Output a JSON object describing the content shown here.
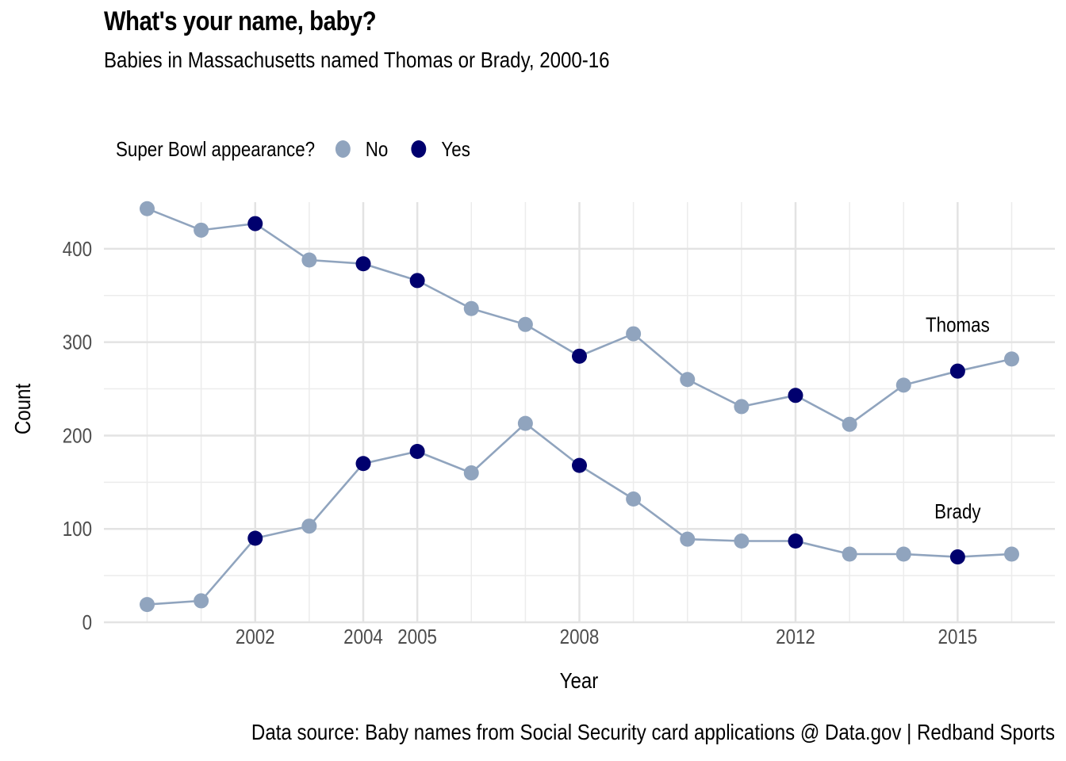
{
  "chart_data": {
    "type": "line",
    "title": "What's your name, baby?",
    "subtitle": "Babies in Massachusetts named Thomas or Brady, 2000-16",
    "xlabel": "Year",
    "ylabel": "Count",
    "caption": "Data source: Baby names from Social Security card applications @ Data.gov  |  Redband Sports",
    "legend": {
      "title": "Super Bowl appearance?",
      "placement": "top-left",
      "items": [
        {
          "label": "No",
          "color": "#90a4be"
        },
        {
          "label": "Yes",
          "color": "#00006e"
        }
      ]
    },
    "xlim": [
      1999.2,
      2016.8
    ],
    "ylim": [
      0,
      450
    ],
    "x_ticks": [
      2002,
      2004,
      2005,
      2008,
      2012,
      2015
    ],
    "y_ticks": [
      0,
      100,
      200,
      300,
      400
    ],
    "grid": true,
    "line_color": "#90a4be",
    "point_colors": {
      "No": "#90a4be",
      "Yes": "#00006e"
    },
    "x": [
      2000,
      2001,
      2002,
      2003,
      2004,
      2005,
      2006,
      2007,
      2008,
      2009,
      2010,
      2011,
      2012,
      2013,
      2014,
      2015,
      2016
    ],
    "super_bowl": [
      "No",
      "No",
      "Yes",
      "No",
      "Yes",
      "Yes",
      "No",
      "No",
      "Yes",
      "No",
      "No",
      "No",
      "Yes",
      "No",
      "No",
      "Yes",
      "No"
    ],
    "series": [
      {
        "name": "Thomas",
        "label_x": 2015,
        "label_y": 319,
        "values": [
          443,
          420,
          427,
          388,
          384,
          366,
          336,
          319,
          285,
          309,
          260,
          231,
          243,
          212,
          254,
          269,
          282
        ]
      },
      {
        "name": "Brady",
        "label_x": 2015,
        "label_y": 119,
        "values": [
          19,
          23,
          90,
          103,
          170,
          183,
          160,
          213,
          168,
          132,
          89,
          87,
          87,
          73,
          73,
          70,
          73
        ]
      }
    ]
  }
}
